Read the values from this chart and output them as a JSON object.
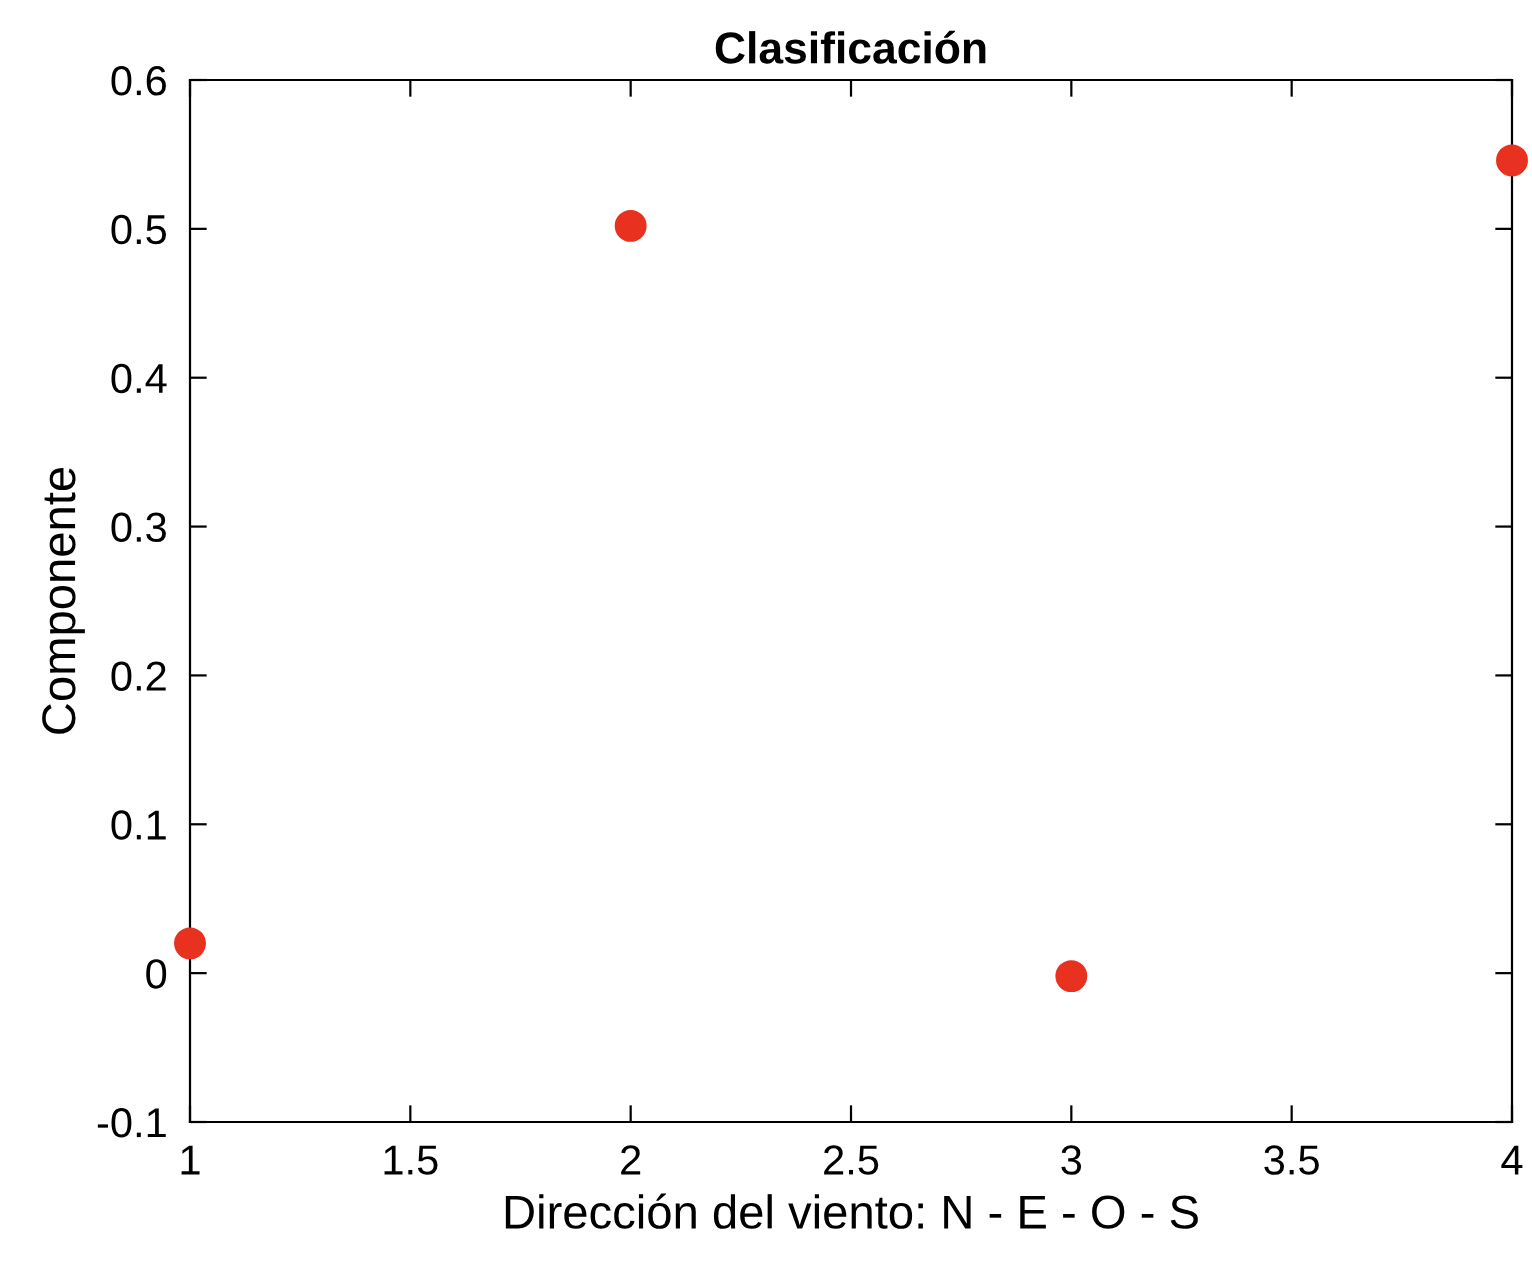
{
  "chart_data": {
    "type": "scatter",
    "title": "Clasificación",
    "xlabel": "Dirección del viento: N - E - O - S",
    "ylabel": "Componente",
    "x": [
      1,
      2,
      3,
      4
    ],
    "series": [
      {
        "color": "#e8311f",
        "values": [
          0.02,
          0.502,
          -0.002,
          0.546
        ]
      }
    ],
    "xlim": [
      1,
      4
    ],
    "xticks": [
      1,
      1.5,
      2,
      2.5,
      3,
      3.5,
      4
    ],
    "ylim": [
      -0.1,
      0.6
    ],
    "yticks": [
      -0.1,
      0,
      0.1,
      0.2,
      0.3,
      0.4,
      0.5,
      0.6
    ],
    "marker": "circle",
    "grid": false,
    "legend": false
  }
}
